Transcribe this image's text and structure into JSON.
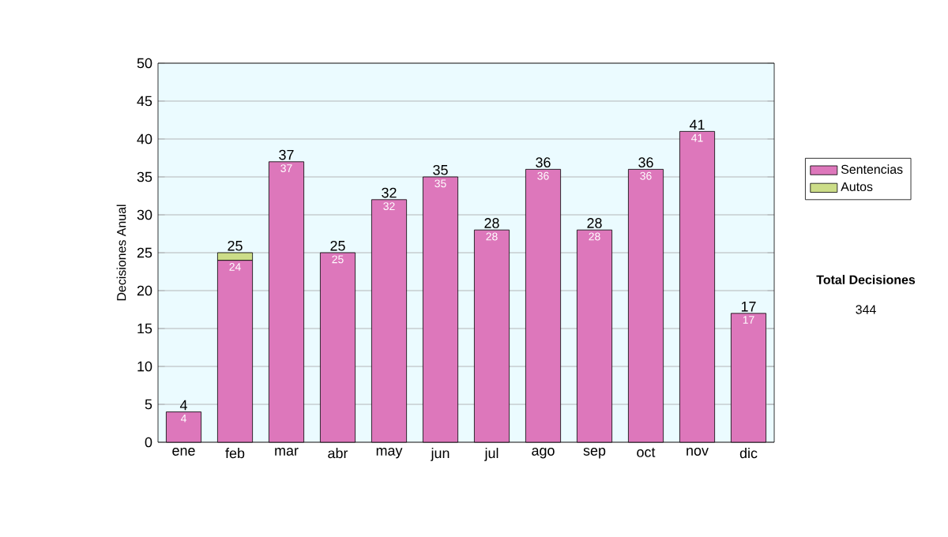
{
  "chart_data": {
    "type": "bar",
    "stacked": true,
    "ylabel": "Decisiones Anual",
    "categories": [
      "ene",
      "feb",
      "mar",
      "abr",
      "may",
      "jun",
      "jul",
      "ago",
      "sep",
      "oct",
      "nov",
      "dic"
    ],
    "series": [
      {
        "name": "Sentencias",
        "color": "#dd77bb",
        "values": [
          4,
          24,
          37,
          25,
          32,
          35,
          28,
          36,
          28,
          36,
          41,
          17
        ],
        "value_labels": [
          "4",
          "24",
          "37",
          "25",
          "32",
          "35",
          "28",
          "36",
          "28",
          "36",
          "41",
          "17"
        ]
      },
      {
        "name": "Autos",
        "color": "#ccdd88",
        "values": [
          null,
          1,
          null,
          null,
          null,
          null,
          null,
          null,
          null,
          null,
          null,
          null
        ]
      }
    ],
    "totals": [
      "4",
      "25",
      "37",
      "25",
      "32",
      "35",
      "28",
      "36",
      "28",
      "36",
      "41",
      "17"
    ],
    "ylim": [
      0,
      50
    ],
    "yticks": [
      0,
      5,
      10,
      15,
      20,
      25,
      30,
      35,
      40,
      45,
      50
    ],
    "grid": "y",
    "legend": "right",
    "annotations": [
      "Total Decisiones",
      "344"
    ]
  }
}
